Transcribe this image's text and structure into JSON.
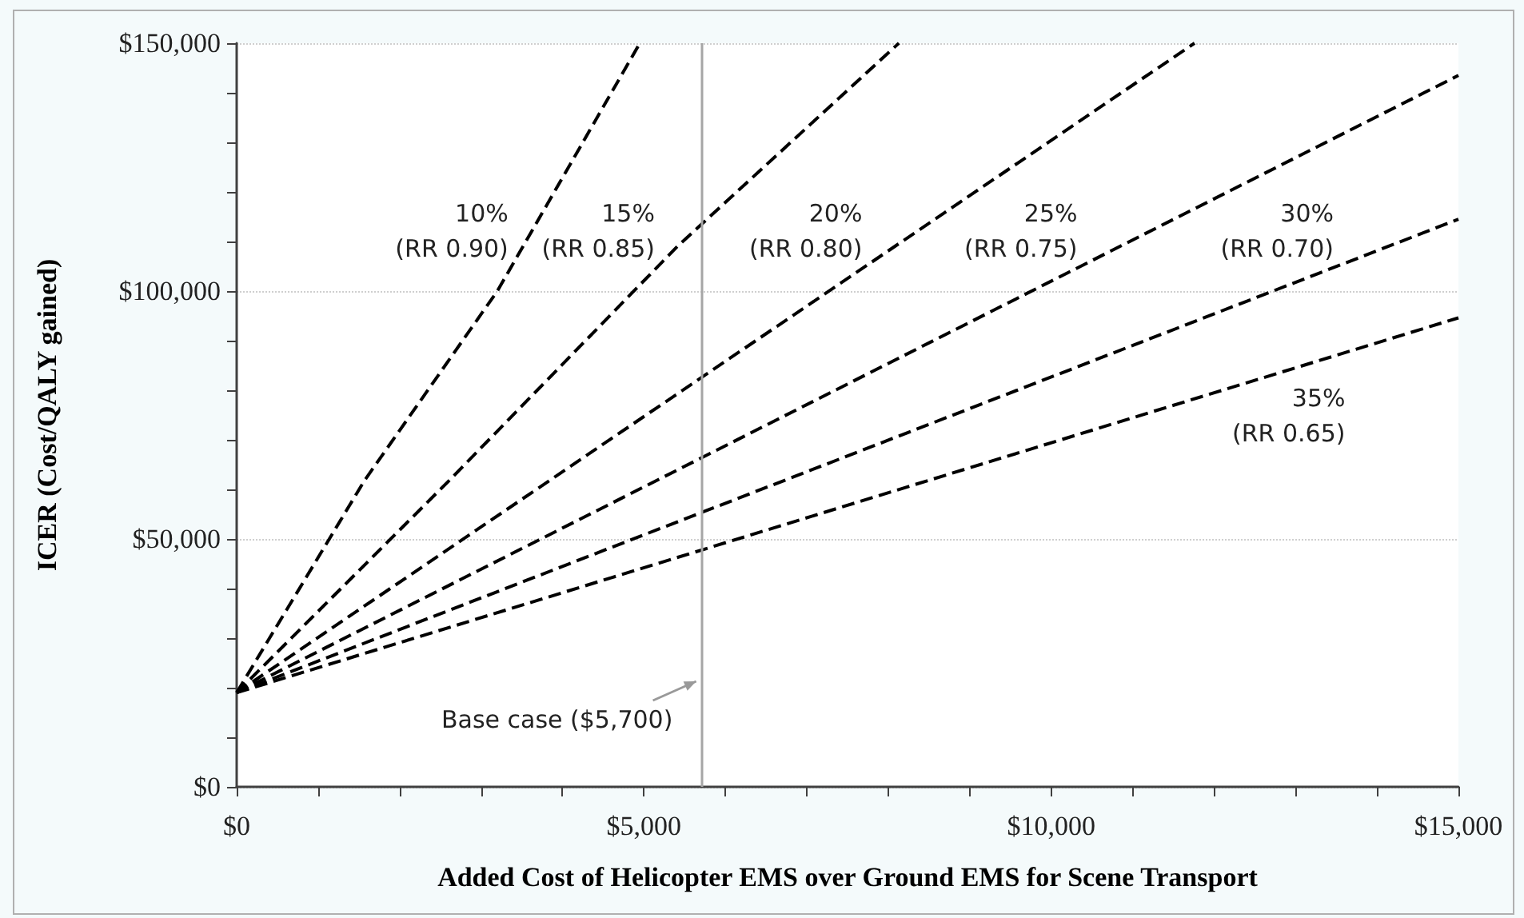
{
  "chart_data": {
    "type": "line",
    "xlabel": "Added Cost of Helicopter EMS over Ground EMS for Scene Transport",
    "ylabel": "ICER (Cost/QALY gained)",
    "xlim": [
      0,
      15000
    ],
    "ylim": [
      0,
      150000
    ],
    "xticks": [
      {
        "value": 0,
        "label": "$0"
      },
      {
        "value": 1000,
        "label": null
      },
      {
        "value": 2000,
        "label": null
      },
      {
        "value": 3000,
        "label": null
      },
      {
        "value": 4000,
        "label": null
      },
      {
        "value": 5000,
        "label": "$5,000"
      },
      {
        "value": 6000,
        "label": null
      },
      {
        "value": 7000,
        "label": null
      },
      {
        "value": 8000,
        "label": null
      },
      {
        "value": 9000,
        "label": null
      },
      {
        "value": 10000,
        "label": "$10,000"
      },
      {
        "value": 11000,
        "label": null
      },
      {
        "value": 12000,
        "label": null
      },
      {
        "value": 13000,
        "label": null
      },
      {
        "value": 14000,
        "label": null
      },
      {
        "value": 15000,
        "label": "$15,000"
      }
    ],
    "yticks": [
      {
        "value": 0,
        "label": "$0"
      },
      {
        "value": 10000,
        "label": null
      },
      {
        "value": 20000,
        "label": null
      },
      {
        "value": 30000,
        "label": null
      },
      {
        "value": 40000,
        "label": null
      },
      {
        "value": 50000,
        "label": "$50,000"
      },
      {
        "value": 60000,
        "label": null
      },
      {
        "value": 70000,
        "label": null
      },
      {
        "value": 80000,
        "label": null
      },
      {
        "value": 90000,
        "label": null
      },
      {
        "value": 100000,
        "label": "$100,000"
      },
      {
        "value": 110000,
        "label": null
      },
      {
        "value": 120000,
        "label": null
      },
      {
        "value": 130000,
        "label": null
      },
      {
        "value": 140000,
        "label": null
      },
      {
        "value": 150000,
        "label": "$150,000"
      }
    ],
    "grid": "y",
    "marker": "none",
    "line_style": "dashed",
    "legend": false,
    "series": [
      {
        "name": "10%\n(RR 0.90)",
        "color": "#000000",
        "x": [
          0,
          1570,
          3200,
          4950
        ],
        "values": [
          19000,
          61800,
          100000,
          150000
        ]
      },
      {
        "name": "15%\n(RR 0.85)",
        "color": "#000000",
        "x": [
          0,
          2610,
          5410,
          8130
        ],
        "values": [
          19000,
          61800,
          109000,
          150000
        ]
      },
      {
        "name": "20%\n(RR 0.80)",
        "color": "#000000",
        "x": [
          0,
          11760
        ],
        "values": [
          19000,
          150000
        ]
      },
      {
        "name": "25%\n(RR 0.75)",
        "color": "#000000",
        "x": [
          0,
          15000
        ],
        "values": [
          19000,
          143500
        ]
      },
      {
        "name": "30%\n(RR 0.70)",
        "color": "#000000",
        "x": [
          0,
          15000
        ],
        "values": [
          19000,
          114500
        ]
      },
      {
        "name": "35%\n(RR 0.65)",
        "color": "#000000",
        "x": [
          0,
          15000
        ],
        "values": [
          19000,
          94600
        ]
      }
    ],
    "ref_lines": [
      {
        "axis": "x",
        "value": 5700,
        "color": "#a6a6a6",
        "line_style": "solid",
        "label": "Base case ($5,700)"
      }
    ]
  }
}
